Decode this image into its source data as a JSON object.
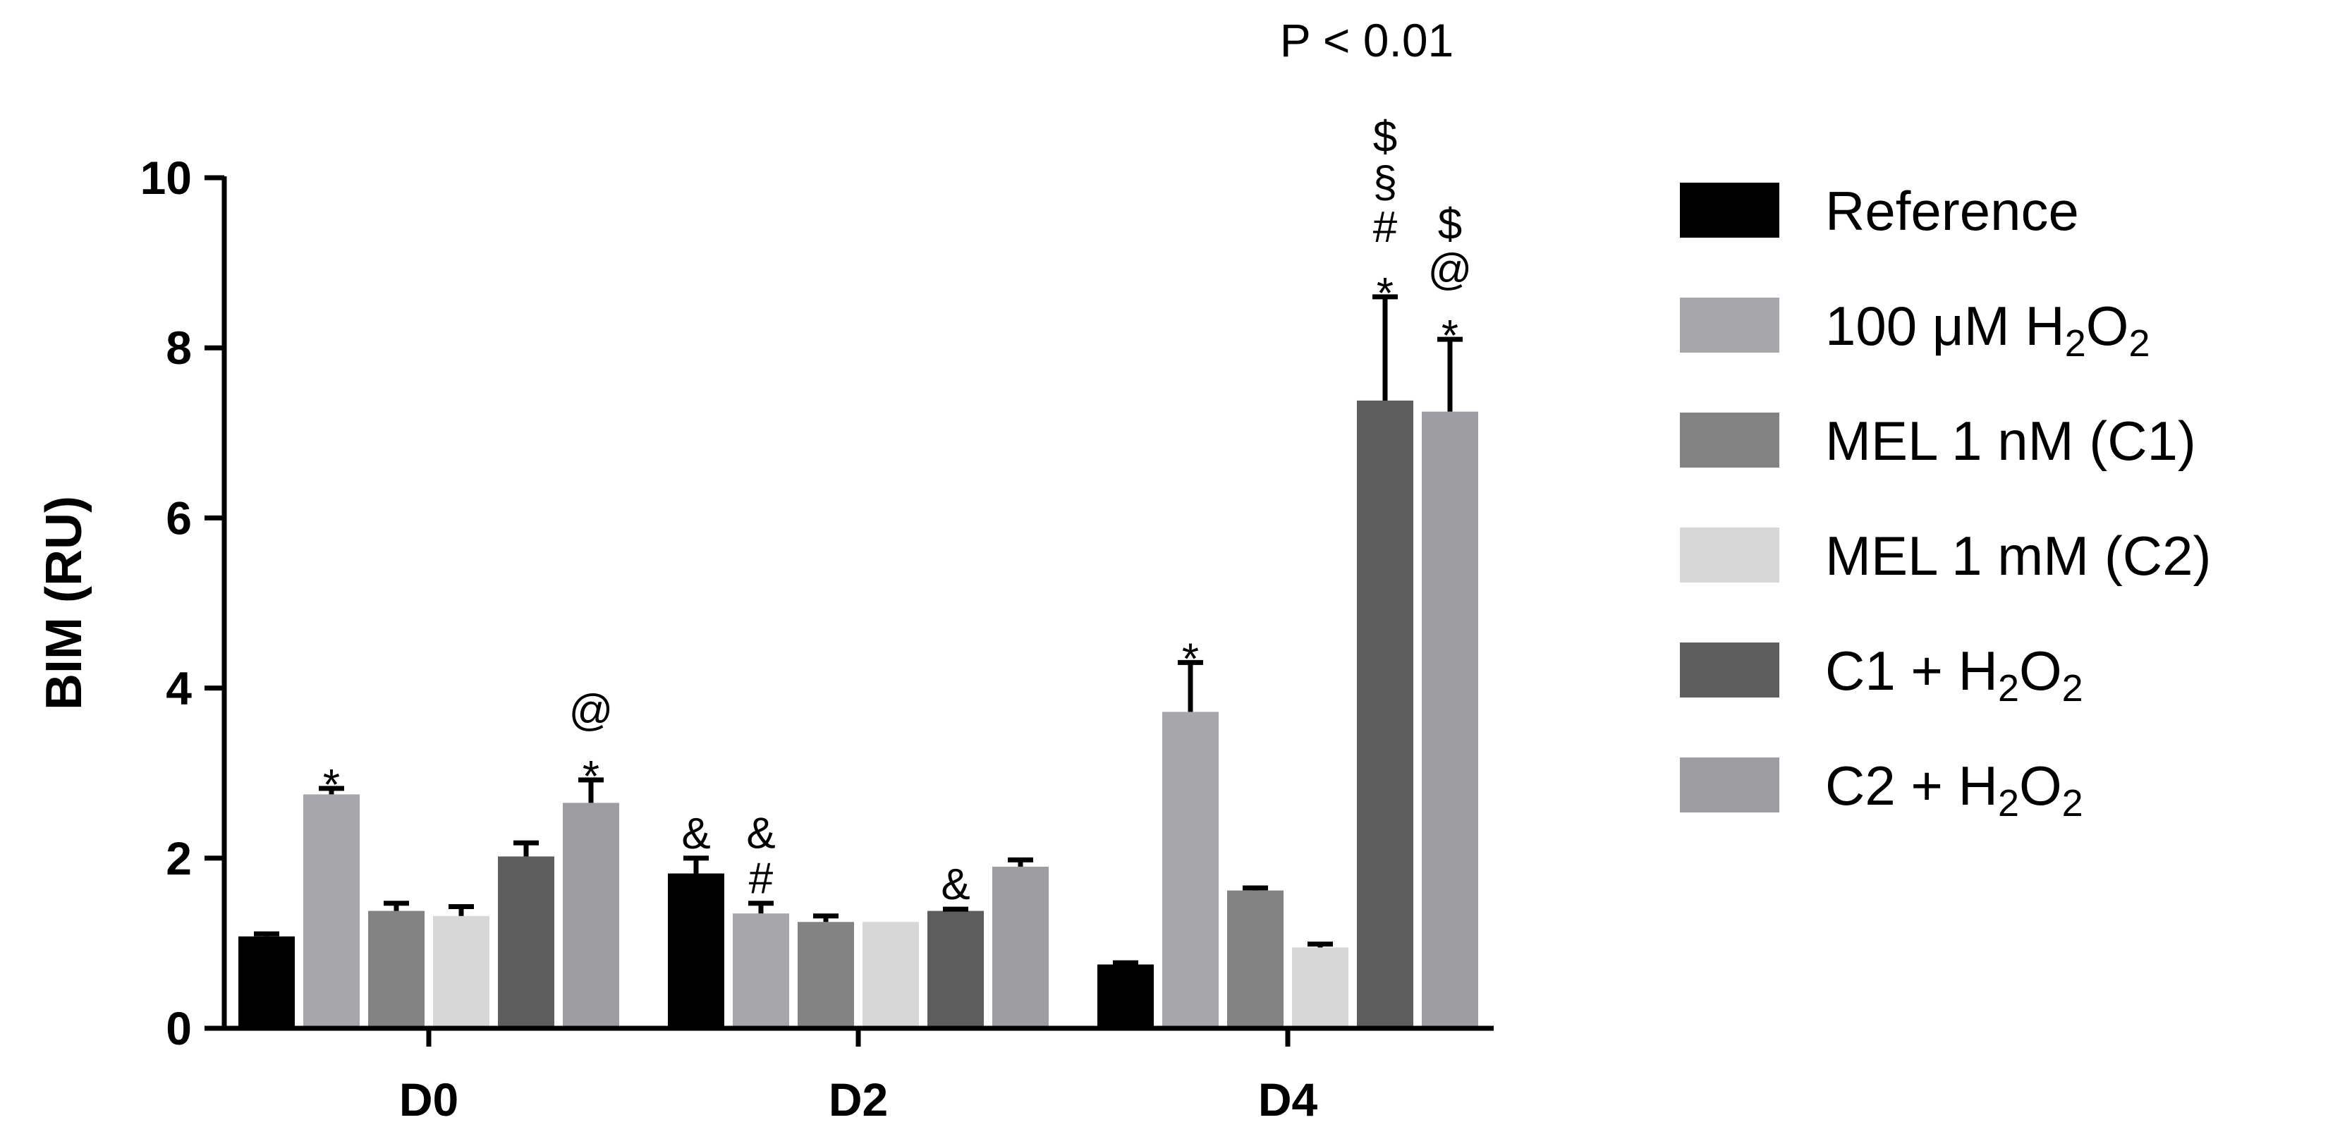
{
  "chart_data": {
    "type": "bar",
    "title": "",
    "ylabel": "BIM (RU)",
    "xlabel": "",
    "ylim": [
      0,
      10
    ],
    "yticks": [
      "0",
      "2",
      "4",
      "6",
      "8",
      "10"
    ],
    "categories": [
      "D0",
      "D2",
      "D4"
    ],
    "significance_note": "P < 0.01",
    "series": [
      {
        "name": "Reference",
        "color": "#000000",
        "values": [
          1.08,
          1.82,
          0.75
        ],
        "errors": [
          0.03,
          0.18,
          0.02
        ]
      },
      {
        "name": "100 μM H2O2",
        "color": "#a7a7ab",
        "values": [
          2.75,
          1.35,
          3.72
        ],
        "errors": [
          0.07,
          0.12,
          0.58
        ]
      },
      {
        "name": "MEL 1 nM (C1)",
        "color": "#838383",
        "values": [
          1.38,
          1.25,
          1.62
        ],
        "errors": [
          0.09,
          0.07,
          0.03
        ]
      },
      {
        "name": "MEL 1 mM (C2)",
        "color": "#d7d7d7",
        "values": [
          1.32,
          1.25,
          0.95
        ],
        "errors": [
          0.11,
          0.0,
          0.04
        ]
      },
      {
        "name": "C1 + H2O2",
        "color": "#5d5d5d",
        "values": [
          2.02,
          1.38,
          7.38
        ],
        "errors": [
          0.16,
          0.02,
          1.22
        ]
      },
      {
        "name": "C2 + H2O2",
        "color": "#9e9ea2",
        "values": [
          2.65,
          1.9,
          7.25
        ],
        "errors": [
          0.27,
          0.08,
          0.85
        ]
      }
    ],
    "annotations": [
      {
        "category": "D0",
        "series": 1,
        "symbols": [
          "*"
        ]
      },
      {
        "category": "D0",
        "series": 5,
        "symbols": [
          "@",
          "*"
        ]
      },
      {
        "category": "D2",
        "series": 0,
        "symbols": [
          "&"
        ]
      },
      {
        "category": "D2",
        "series": 1,
        "symbols": [
          "&",
          "#"
        ]
      },
      {
        "category": "D2",
        "series": 4,
        "symbols": [
          "&"
        ]
      },
      {
        "category": "D4",
        "series": 1,
        "symbols": [
          "*"
        ]
      },
      {
        "category": "D4",
        "series": 4,
        "symbols": [
          "$",
          "§",
          "#",
          "*"
        ]
      },
      {
        "category": "D4",
        "series": 5,
        "symbols": [
          "$",
          "@",
          "*"
        ]
      }
    ],
    "legend_placement": "right",
    "legend": [
      {
        "label": "Reference",
        "formula_suffix": false
      },
      {
        "label": "100 μM H",
        "formula_suffix": true
      },
      {
        "label": "MEL 1 nM (C1)",
        "formula_suffix": false
      },
      {
        "label": "MEL 1 mM (C2)",
        "formula_suffix": false
      },
      {
        "label": "C1 + H",
        "formula_suffix": true
      },
      {
        "label": "C2 + H",
        "formula_suffix": true
      }
    ],
    "formula": {
      "sub": "2",
      "o": "O"
    }
  }
}
